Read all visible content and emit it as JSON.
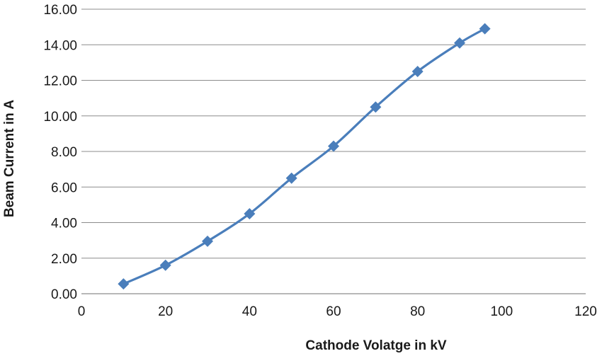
{
  "chart_data": {
    "type": "line",
    "title": "",
    "xlabel": "Cathode Volatge in kV",
    "ylabel": "Beam Current in A",
    "xlim": [
      0,
      120
    ],
    "ylim": [
      0,
      16
    ],
    "x_ticks": [
      "0",
      "20",
      "40",
      "60",
      "80",
      "100",
      "120"
    ],
    "y_ticks": [
      "0.00",
      "2.00",
      "4.00",
      "6.00",
      "8.00",
      "10.00",
      "12.00",
      "14.00",
      "16.00"
    ],
    "grid": "horizontal",
    "marker": "diamond",
    "series": [
      {
        "color": "#4a7ebb",
        "x": [
          10,
          20,
          30,
          40,
          50,
          60,
          70,
          80,
          90,
          96
        ],
        "y": [
          0.55,
          1.6,
          2.95,
          4.5,
          6.5,
          8.3,
          10.5,
          12.5,
          14.1,
          14.9
        ]
      }
    ]
  }
}
